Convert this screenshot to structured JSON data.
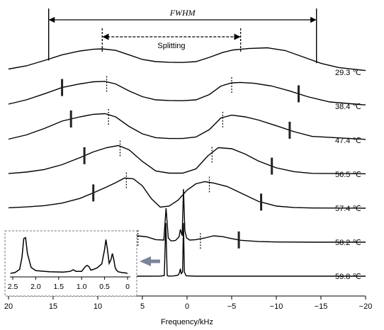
{
  "chart_data": {
    "type": "line",
    "xlabel": "Frequency/kHz",
    "xlim": [
      20,
      -20
    ],
    "xticks": [
      20,
      15,
      10,
      5,
      0,
      -5,
      -10,
      -15,
      -20
    ],
    "annotations": {
      "fwhm": {
        "text": "FWHM",
        "x": [
          15.5,
          -14.5
        ]
      },
      "splitting": {
        "text": "Splitting",
        "x": [
          9.5,
          -6
        ]
      }
    },
    "series": [
      {
        "name": "29.3 ℃",
        "offset": 6.0,
        "edge_x": [
          15.5,
          -14.5
        ],
        "dash_x": [
          9.5,
          -6.0
        ],
        "x": [
          20,
          18,
          16,
          14,
          12,
          10.5,
          9.5,
          8,
          6.5,
          5,
          3.5,
          2,
          0.5,
          -1,
          -2.5,
          -4,
          -5.2,
          -6,
          -7,
          -9,
          -11,
          -13,
          -15,
          -17,
          -20
        ],
        "y": [
          0.15,
          0.3,
          0.55,
          0.82,
          1.0,
          1.08,
          1.1,
          1.03,
          0.82,
          0.6,
          0.5,
          0.47,
          0.46,
          0.5,
          0.7,
          0.93,
          1.05,
          1.08,
          1.12,
          1.15,
          1.02,
          0.72,
          0.42,
          0.22,
          0.08
        ]
      },
      {
        "name": "38.4 ℃",
        "offset": 5.0,
        "edge_x": [
          14.0,
          -12.5
        ],
        "dash_x": [
          9.0,
          -5.0
        ],
        "x": [
          20,
          18,
          16,
          14,
          12,
          10.5,
          9.2,
          8,
          6.5,
          5,
          3.5,
          2,
          0.5,
          -1,
          -2.5,
          -3.8,
          -5,
          -6,
          -7.5,
          -9.5,
          -11.5,
          -13.5,
          -16,
          -20
        ],
        "y": [
          0.1,
          0.3,
          0.58,
          0.88,
          1.05,
          1.15,
          1.17,
          1.05,
          0.72,
          0.45,
          0.3,
          0.27,
          0.26,
          0.3,
          0.55,
          0.95,
          1.1,
          1.12,
          1.08,
          0.95,
          0.72,
          0.45,
          0.2,
          0.06
        ]
      },
      {
        "name": "47.4 ℃",
        "offset": 4.0,
        "edge_x": [
          13.0,
          -11.5
        ],
        "dash_x": [
          8.8,
          -4.0
        ],
        "x": [
          20,
          18,
          16,
          14,
          12,
          10.5,
          9.2,
          8,
          6.5,
          5,
          3.5,
          2,
          0.5,
          -1,
          -2.5,
          -3.8,
          -5,
          -6.5,
          -8,
          -10,
          -12,
          -14,
          -20
        ],
        "y": [
          0.05,
          0.25,
          0.55,
          0.9,
          1.1,
          1.22,
          1.25,
          1.1,
          0.65,
          0.3,
          0.12,
          0.08,
          0.08,
          0.15,
          0.5,
          1.05,
          1.18,
          1.1,
          0.95,
          0.68,
          0.4,
          0.18,
          0.04
        ]
      },
      {
        "name": "56.5 ℃",
        "offset": 3.0,
        "edge_x": [
          11.5,
          -9.5
        ],
        "dash_x": [
          7.5,
          -2.8
        ],
        "x": [
          20,
          18,
          16,
          14,
          12,
          10.5,
          9,
          7.7,
          6.5,
          5,
          3.5,
          2,
          0.5,
          -1,
          -2.3,
          -3.5,
          -5,
          -6.5,
          -8,
          -10,
          -12,
          -14,
          -20
        ],
        "y": [
          0.03,
          0.1,
          0.22,
          0.45,
          0.78,
          1.05,
          1.25,
          1.35,
          1.15,
          0.6,
          0.15,
          0.05,
          0.05,
          0.25,
          0.85,
          1.25,
          1.2,
          0.95,
          0.62,
          0.3,
          0.12,
          0.04,
          0.02
        ]
      },
      {
        "name": "57.4 ℃",
        "offset": 2.0,
        "edge_x": [
          10.5,
          -8.3
        ],
        "dash_x": [
          6.8,
          -2.5
        ],
        "x": [
          20,
          18,
          16,
          14,
          12,
          10.5,
          9,
          8,
          7,
          6,
          5,
          4,
          3,
          2,
          1,
          0,
          -1,
          -2,
          -3,
          -4.5,
          -6,
          -8,
          -10,
          -12,
          -14,
          -20
        ],
        "y": [
          0.02,
          0.06,
          0.12,
          0.24,
          0.46,
          0.72,
          1.0,
          1.2,
          1.42,
          1.38,
          1.05,
          0.45,
          0.05,
          0.1,
          0.38,
          0.85,
          1.15,
          1.25,
          1.18,
          1.02,
          0.72,
          0.32,
          0.1,
          0.03,
          0.01,
          0.0
        ]
      },
      {
        "name": "58.2 ℃",
        "offset": 1.0,
        "edge_x": [
          8.3,
          -5.8
        ],
        "dash_x": [
          5.5,
          -1.5
        ],
        "x": [
          20,
          16,
          12,
          10,
          8.5,
          7,
          6,
          5.5,
          4.5,
          3.5,
          2.6,
          2.35,
          2.1,
          1.8,
          1.3,
          0.9,
          0.75,
          0.55,
          0.4,
          0.25,
          0.05,
          -0.3,
          -1,
          -2,
          -3,
          -4,
          -5,
          -6,
          -8,
          -10,
          -14,
          -20
        ],
        "y": [
          0.0,
          0.01,
          0.04,
          0.08,
          0.14,
          0.2,
          0.26,
          0.3,
          0.25,
          0.12,
          0.1,
          1.6,
          0.2,
          0.06,
          0.08,
          0.25,
          0.6,
          0.3,
          2.5,
          0.55,
          0.2,
          0.1,
          0.12,
          0.2,
          0.3,
          0.26,
          0.17,
          0.09,
          0.03,
          0.01,
          0.0,
          0.0
        ]
      },
      {
        "name": "59.8 ℃",
        "offset": 0.0,
        "edge_x": [],
        "dash_x": [],
        "x": [
          20,
          5,
          3,
          2.55,
          2.38,
          2.22,
          2.05,
          1.5,
          1.0,
          0.85,
          0.75,
          0.65,
          0.5,
          0.4,
          0.3,
          0.1,
          -1,
          -5,
          -20
        ],
        "y": [
          0.0,
          0.0,
          0.005,
          0.03,
          2.5,
          0.03,
          0.005,
          0.01,
          0.05,
          0.16,
          0.35,
          0.12,
          0.2,
          2.5,
          0.2,
          0.02,
          0.0,
          0.0,
          0.0
        ]
      }
    ],
    "inset": {
      "xlim": [
        2.5,
        0
      ],
      "xticks": [
        "2.5",
        "2.0",
        "1.5",
        "1.0",
        "0.5",
        "0"
      ],
      "x": [
        2.55,
        2.45,
        2.35,
        2.3,
        2.26,
        2.22,
        2.18,
        2.1,
        2.0,
        1.7,
        1.4,
        1.25,
        1.18,
        1.12,
        1.0,
        0.92,
        0.88,
        0.84,
        0.8,
        0.74,
        0.66,
        0.56,
        0.5,
        0.47,
        0.44,
        0.4,
        0.36,
        0.33,
        0.3,
        0.27,
        0.24,
        0.2,
        0.12,
        0.05,
        0
      ],
      "y": [
        0.0,
        0.02,
        0.1,
        0.4,
        0.88,
        0.9,
        0.5,
        0.15,
        0.07,
        0.04,
        0.03,
        0.05,
        0.09,
        0.05,
        0.05,
        0.17,
        0.2,
        0.17,
        0.08,
        0.1,
        0.14,
        0.24,
        0.6,
        0.85,
        0.62,
        0.25,
        0.35,
        0.5,
        0.35,
        0.15,
        0.08,
        0.04,
        0.02,
        0.01,
        0.0
      ]
    }
  }
}
